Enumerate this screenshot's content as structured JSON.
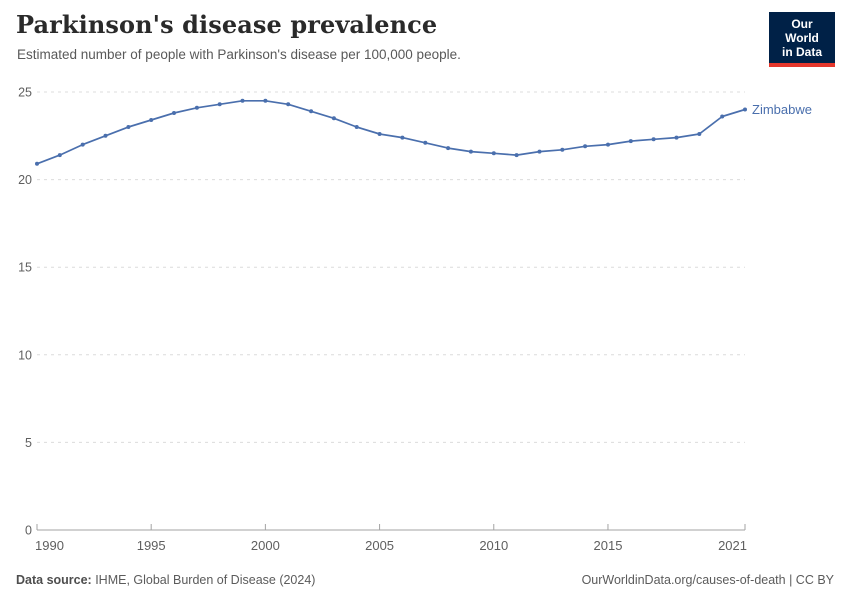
{
  "header": {
    "title": "Parkinson's disease prevalence",
    "subtitle": "Estimated number of people with Parkinson's disease per 100,000 people."
  },
  "logo": {
    "line1": "Our World",
    "line2": "in Data",
    "bg_color": "#002147",
    "accent_color": "#e5372c"
  },
  "chart_data": {
    "type": "line",
    "title": "Parkinson's disease prevalence",
    "subtitle": "Estimated number of people with Parkinson's disease per 100,000 people.",
    "x": [
      1990,
      1991,
      1992,
      1993,
      1994,
      1995,
      1996,
      1997,
      1998,
      1999,
      2000,
      2001,
      2002,
      2003,
      2004,
      2005,
      2006,
      2007,
      2008,
      2009,
      2010,
      2011,
      2012,
      2013,
      2014,
      2015,
      2016,
      2017,
      2018,
      2019,
      2020,
      2021
    ],
    "series": [
      {
        "name": "Zimbabwe",
        "color": "#4a6fad",
        "values": [
          20.9,
          21.4,
          22.0,
          22.5,
          23.0,
          23.4,
          23.8,
          24.1,
          24.3,
          24.5,
          24.5,
          24.3,
          23.9,
          23.5,
          23.0,
          22.6,
          22.4,
          22.1,
          21.8,
          21.6,
          21.5,
          21.4,
          21.6,
          21.7,
          21.9,
          22.0,
          22.2,
          22.3,
          22.4,
          22.6,
          23.6,
          24.0
        ]
      }
    ],
    "xlim": [
      1990,
      2021
    ],
    "ylim": [
      0,
      25
    ],
    "xticks": [
      1990,
      1995,
      2000,
      2005,
      2010,
      2015,
      2021
    ],
    "yticks": [
      0,
      5,
      10,
      15,
      20,
      25
    ],
    "grid": "horizontal-dashed",
    "grid_color": "#dcdcdc",
    "axis_color": "#a3a3a3",
    "tick_label_color": "#5f5f5f",
    "legend": "end-of-line-label"
  },
  "footer": {
    "source_label": "Data source:",
    "source_value": " IHME, Global Burden of Disease (2024)",
    "attribution": "OurWorldinData.org/causes-of-death | CC BY"
  }
}
